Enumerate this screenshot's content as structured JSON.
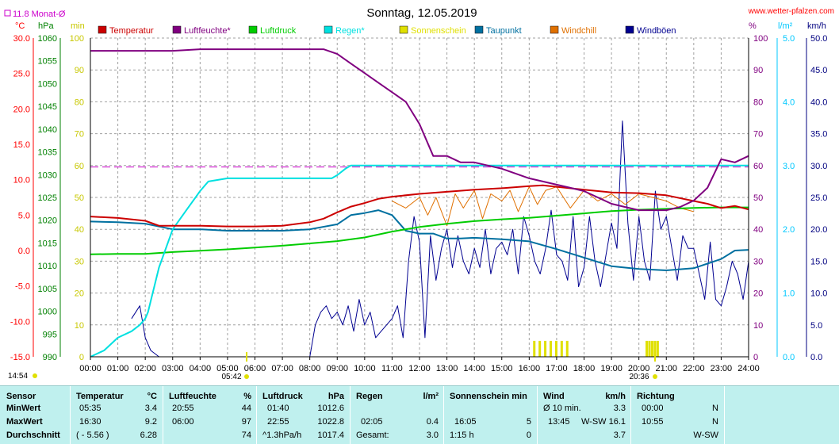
{
  "header": {
    "title": "Sonntag, 12.05.2019",
    "site": "www.wetter-pfalzen.com",
    "avg_note": "11.8 Monat-Ø",
    "unit_temp": "°C",
    "unit_press": "hPa",
    "unit_min": "min",
    "unit_pct": "%",
    "unit_rain": "l/m²",
    "unit_wind": "km/h",
    "sunrise_time": "05:42",
    "sunset_time": "20:36",
    "now_time": "14:54"
  },
  "chart_data": {
    "type": "line",
    "title": "Sonntag, 12.05.2019",
    "x_range": [
      "00:00",
      "24:00"
    ],
    "x_ticks": [
      "00:00",
      "01:00",
      "02:00",
      "03:00",
      "04:00",
      "05:00",
      "06:00",
      "07:00",
      "08:00",
      "09:00",
      "10:00",
      "11:00",
      "12:00",
      "13:00",
      "14:00",
      "15:00",
      "16:00",
      "17:00",
      "18:00",
      "19:00",
      "20:00",
      "21:00",
      "22:00",
      "23:00",
      "24:00"
    ],
    "axes": {
      "temperature": {
        "unit": "°C",
        "range": [
          -15,
          30
        ],
        "ticks": [
          "30.0",
          "25.0",
          "20.0",
          "15.0",
          "10.0",
          "5.0",
          "0.0",
          "-5.0",
          "-10.0",
          "-15.0"
        ],
        "color": "#ff0000"
      },
      "pressure": {
        "unit": "hPa",
        "range": [
          990,
          1060
        ],
        "ticks": [
          "1060",
          "1055",
          "1050",
          "1045",
          "1040",
          "1035",
          "1030",
          "1025",
          "1020",
          "1015",
          "1010",
          "1005",
          "1000",
          "995",
          "990"
        ],
        "color": "#008000"
      },
      "sunshine": {
        "unit": "min",
        "range": [
          0,
          100
        ],
        "ticks": [
          "100",
          "90",
          "80",
          "70",
          "60",
          "50",
          "40",
          "30",
          "20",
          "10",
          "0"
        ],
        "color": "#c8c800"
      },
      "humidity": {
        "unit": "%",
        "range": [
          0,
          100
        ],
        "ticks": [
          "100",
          "90",
          "80",
          "70",
          "60",
          "50",
          "40",
          "30",
          "20",
          "10",
          "0"
        ],
        "color": "#800080"
      },
      "rain": {
        "unit": "l/m²",
        "range": [
          0,
          5
        ],
        "ticks": [
          "5.0",
          "4.0",
          "3.0",
          "2.0",
          "1.0",
          "0.0"
        ],
        "color": "#00c8ff"
      },
      "wind": {
        "unit": "km/h",
        "range": [
          0,
          50
        ],
        "ticks": [
          "50.0",
          "45.0",
          "40.0",
          "35.0",
          "30.0",
          "25.0",
          "20.0",
          "15.0",
          "10.0",
          "5.0",
          "0.0"
        ],
        "color": "#000080"
      }
    },
    "grid": true,
    "month_avg_temp": 11.8,
    "legend": [
      {
        "name": "Temperatur",
        "color": "#cc0000"
      },
      {
        "name": "Luftfeuchte*",
        "color": "#800080"
      },
      {
        "name": "Luftdruck",
        "color": "#00cc00"
      },
      {
        "name": "Regen*",
        "color": "#00e0e0"
      },
      {
        "name": "Sonnenschein",
        "color": "#e0e000"
      },
      {
        "name": "Taupunkt",
        "color": "#0070a0"
      },
      {
        "name": "Windchill",
        "color": "#e07000"
      },
      {
        "name": "Windböen",
        "color": "#000090"
      }
    ],
    "series": [
      {
        "name": "Temperatur",
        "axis": "temperature",
        "x": [
          0,
          1,
          2,
          2.5,
          3,
          4,
          5,
          6,
          7,
          8,
          8.5,
          9,
          9.5,
          10,
          10.5,
          11,
          12,
          13,
          14,
          15,
          16,
          16.5,
          17,
          18,
          19,
          20,
          21,
          22,
          22.5,
          23,
          23.5,
          24
        ],
        "y": [
          4.8,
          4.6,
          4.2,
          3.5,
          3.5,
          3.5,
          3.4,
          3.4,
          3.5,
          4.0,
          4.5,
          5.4,
          6.2,
          6.7,
          7.3,
          7.6,
          8.0,
          8.3,
          8.6,
          8.8,
          9.1,
          9.2,
          9.0,
          8.6,
          8.2,
          8.1,
          7.8,
          7.0,
          6.6,
          6.0,
          6.3,
          5.8
        ]
      },
      {
        "name": "Luftfeuchte*",
        "axis": "humidity",
        "x": [
          0,
          1,
          2,
          3,
          4,
          5,
          6,
          7,
          8,
          8.5,
          9,
          9.5,
          10,
          10.5,
          11,
          11.5,
          12,
          12.5,
          13,
          13.5,
          14,
          15,
          16,
          17,
          17.5,
          18,
          18.5,
          19,
          19.5,
          20,
          20.5,
          21,
          21.5,
          22,
          22.5,
          23,
          23.5,
          24
        ],
        "y": [
          96,
          96,
          96,
          96,
          96.5,
          96.5,
          96.5,
          96.5,
          96.5,
          96.5,
          95,
          92,
          89,
          86,
          83,
          80,
          73,
          63,
          63,
          61,
          61,
          59,
          56,
          54,
          53,
          52,
          50,
          48,
          47,
          46,
          46,
          46,
          47,
          49,
          53,
          62,
          61,
          63
        ]
      },
      {
        "name": "Luftdruck",
        "axis": "pressure",
        "x": [
          0,
          1,
          2,
          3,
          4,
          5,
          6,
          7,
          8,
          9,
          10,
          11,
          12,
          13,
          14,
          15,
          16,
          17,
          18,
          19,
          20,
          21,
          22,
          23,
          24
        ],
        "y": [
          1012.5,
          1012.6,
          1012.6,
          1013,
          1013.3,
          1013.6,
          1014,
          1014.4,
          1014.9,
          1015.4,
          1016.2,
          1017.5,
          1018.5,
          1019.2,
          1019.8,
          1020.2,
          1020.5,
          1021,
          1021.5,
          1022,
          1022.3,
          1022.5,
          1022.7,
          1022.8,
          1022.8
        ]
      },
      {
        "name": "Regen*",
        "axis": "rain",
        "x": [
          0,
          0.5,
          1,
          1.5,
          1.8,
          2,
          2.1,
          2.5,
          3,
          3.5,
          4,
          4.3,
          5,
          6,
          7,
          8,
          8.8,
          9,
          9.3,
          9.5,
          10,
          11,
          12,
          13,
          14,
          15,
          16,
          17,
          18,
          19,
          20,
          21,
          22,
          23,
          24
        ],
        "y": [
          0,
          0.1,
          0.3,
          0.4,
          0.5,
          0.6,
          0.7,
          1.4,
          2.0,
          2.3,
          2.6,
          2.75,
          2.8,
          2.8,
          2.8,
          2.8,
          2.8,
          2.85,
          2.95,
          3.0,
          3.0,
          3.0,
          3.0,
          3.0,
          3.0,
          3.0,
          3.0,
          3.0,
          3.0,
          3.0,
          3.0,
          3.0,
          3.0,
          3.0,
          3.0
        ]
      },
      {
        "name": "Taupunkt",
        "axis": "temperature",
        "x": [
          0,
          1,
          2,
          3,
          4,
          5,
          6,
          7,
          8,
          9,
          9.5,
          10,
          10.5,
          11,
          11.5,
          12,
          12.5,
          13,
          13.5,
          14,
          15,
          16,
          17,
          18,
          19,
          20,
          21,
          22,
          23,
          23.5,
          24
        ],
        "y": [
          4.1,
          4.0,
          3.8,
          3.0,
          3.0,
          2.8,
          2.8,
          2.8,
          3.0,
          3.7,
          5.0,
          5.3,
          5.7,
          5.0,
          2.8,
          2.4,
          2.4,
          1.7,
          1.7,
          1.8,
          1.6,
          1.3,
          0.2,
          -1.0,
          -2.2,
          -2.6,
          -2.8,
          -2.5,
          -1.2,
          0.0,
          0.1
        ]
      },
      {
        "name": "Windchill",
        "axis": "temperature",
        "x": [
          11,
          11.5,
          12,
          12.3,
          12.6,
          13,
          13.3,
          13.6,
          14,
          14.3,
          14.6,
          15,
          15.3,
          15.6,
          16,
          16.3,
          16.6,
          17,
          17.5,
          18,
          18.5,
          19,
          19.5,
          20,
          20.5,
          21,
          21.5,
          22
        ],
        "y": [
          7.0,
          6.0,
          7.5,
          5.0,
          7.5,
          3.5,
          8.0,
          6.0,
          8.5,
          4.5,
          8.0,
          7.0,
          8.5,
          5.5,
          9.0,
          6.5,
          8.5,
          9.0,
          6.0,
          8.5,
          7.0,
          8.0,
          6.5,
          8.0,
          7.5,
          7.0,
          6.0,
          5.5
        ]
      },
      {
        "name": "Windböen",
        "axis": "wind",
        "x": [
          1.5,
          1.8,
          2.0,
          2.2,
          2.5,
          3,
          4,
          5,
          6,
          7,
          8,
          8.2,
          8.4,
          8.6,
          8.8,
          9,
          9.2,
          9.4,
          9.6,
          9.8,
          10,
          10.2,
          10.4,
          10.6,
          10.8,
          11,
          11.2,
          11.4,
          11.6,
          11.8,
          12,
          12.2,
          12.4,
          12.6,
          12.8,
          13,
          13.2,
          13.4,
          13.6,
          13.8,
          14,
          14.2,
          14.4,
          14.6,
          14.8,
          15,
          15.2,
          15.4,
          15.6,
          15.8,
          16,
          16.2,
          16.4,
          16.6,
          16.8,
          17,
          17.2,
          17.4,
          17.6,
          17.8,
          18,
          18.2,
          18.4,
          18.6,
          18.8,
          19,
          19.2,
          19.4,
          19.6,
          19.8,
          20,
          20.2,
          20.4,
          20.6,
          20.8,
          21,
          21.2,
          21.4,
          21.6,
          21.8,
          22,
          22.2,
          22.4,
          22.6,
          22.8,
          23,
          23.2,
          23.4,
          23.6,
          23.8,
          24
        ],
        "y": [
          6,
          8,
          3,
          1,
          0,
          0,
          0,
          0,
          0,
          0,
          0,
          5,
          7,
          8,
          6,
          7,
          5,
          8,
          4,
          9,
          5,
          7,
          3,
          4,
          5,
          6,
          8,
          3,
          15,
          22,
          18,
          3,
          19,
          12,
          17,
          20,
          14,
          19,
          15,
          13,
          17,
          14,
          20,
          13,
          17,
          18,
          16,
          20,
          13,
          22,
          19,
          15,
          13,
          17,
          23,
          16,
          15,
          12,
          22,
          11,
          14,
          22,
          15,
          11,
          16,
          21,
          17,
          37,
          21,
          12,
          22,
          15,
          12,
          26,
          20,
          22,
          17,
          12,
          19,
          17,
          17,
          13,
          9,
          18,
          9,
          8,
          11,
          15,
          13,
          9,
          15
        ]
      },
      {
        "name": "Sonnenschein",
        "axis": "sunshine",
        "x": [
          16.2,
          16.4,
          16.6,
          16.8,
          17.0,
          17.2,
          17.4,
          20.3,
          20.4,
          20.5,
          20.6,
          20.7
        ],
        "y": [
          5,
          5,
          5,
          5,
          5,
          5,
          5,
          5,
          5,
          5,
          5,
          5
        ]
      }
    ]
  },
  "table": {
    "headers": {
      "sensor": "Sensor",
      "temp": "Temperatur",
      "temp_unit": "°C",
      "hum": "Luftfeuchte",
      "hum_unit": "%",
      "press": "Luftdruck",
      "press_unit": "hPa",
      "rain": "Regen",
      "rain_unit": "l/m²",
      "sun": "Sonnenschein min",
      "wind": "Wind",
      "wind_unit": "km/h",
      "dir": "Richtung"
    },
    "rows": [
      {
        "label": "MinWert",
        "temp_time": "05:35",
        "temp_val": "3.4",
        "hum_time": "20:55",
        "hum_val": "44",
        "press_time": "01:40",
        "press_val": "1012.6",
        "rain_time": "",
        "rain_val": "",
        "sun_time": "",
        "sun_val": "",
        "wind_time": "Ø 10 min.",
        "wind_dir": "",
        "wind_val": "3.3",
        "dir_time": "00:00",
        "dir_val": "N"
      },
      {
        "label": "MaxWert",
        "temp_time": "16:30",
        "temp_val": "9.2",
        "hum_time": "06:00",
        "hum_val": "97",
        "press_time": "22:55",
        "press_val": "1022.8",
        "rain_time": "02:05",
        "rain_val": "0.4",
        "sun_time": "16:05",
        "sun_val": "5",
        "wind_time": "13:45",
        "wind_dir": "W-SW",
        "wind_val": "16.1",
        "dir_time": "10:55",
        "dir_val": "N"
      },
      {
        "label": "Durchschnitt",
        "temp_time": "( - 5.56 )",
        "temp_val": "6.28",
        "hum_time": "",
        "hum_val": "74",
        "press_time": "^1.3hPa/h",
        "press_val": "1017.4",
        "rain_time": "Gesamt:",
        "rain_val": "3.0",
        "sun_time": "1:15 h",
        "sun_val": "0",
        "wind_time": "",
        "wind_dir": "",
        "wind_val": "3.7",
        "dir_time": "",
        "dir_val": "W-SW"
      }
    ]
  }
}
